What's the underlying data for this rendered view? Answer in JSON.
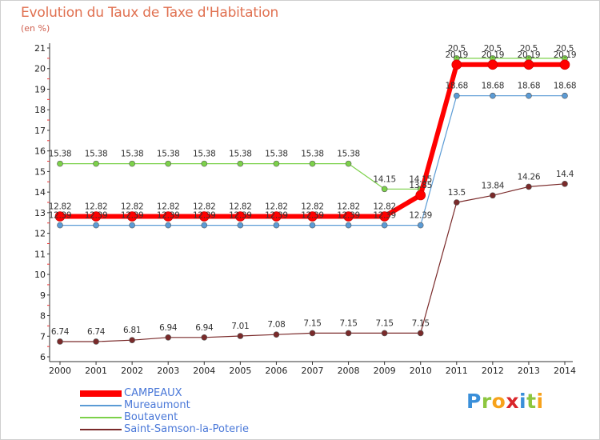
{
  "title": "Evolution du Taux de Taxe d'Habitation",
  "unit": "(en %)",
  "logo": {
    "text": "Proxiti"
  },
  "chart_data": {
    "type": "line",
    "title": "Evolution du Taux de Taxe d'Habitation",
    "ylabel": "(en %)",
    "xlabel": "",
    "x": [
      "2000",
      "2001",
      "2002",
      "2003",
      "2004",
      "2005",
      "2006",
      "2007",
      "2008",
      "2009",
      "2010",
      "2011",
      "2012",
      "2013",
      "2014"
    ],
    "ylim": [
      6,
      21
    ],
    "yticks": [
      "6",
      "7",
      "8",
      "9",
      "10",
      "11",
      "12",
      "13",
      "14",
      "15",
      "16",
      "17",
      "18",
      "19",
      "20",
      "21"
    ],
    "grid": false,
    "legend": "bottom-left",
    "series": [
      {
        "name": "CAMPEAUX",
        "color": "#ff0000",
        "values": [
          12.82,
          12.82,
          12.82,
          12.82,
          12.82,
          12.82,
          12.82,
          12.82,
          12.82,
          12.82,
          13.85,
          20.19,
          20.19,
          20.19,
          20.19
        ],
        "labels": [
          "12.82",
          "12.82",
          "12.82",
          "12.82",
          "12.82",
          "12.82",
          "12.82",
          "12.82",
          "12.82",
          "12.82",
          "13.85",
          "20.19",
          "20.19",
          "20.19",
          "20.19"
        ]
      },
      {
        "name": "Mureaumont",
        "color": "#5b9bd5",
        "values": [
          12.39,
          12.39,
          12.39,
          12.39,
          12.39,
          12.39,
          12.39,
          12.39,
          12.39,
          12.39,
          12.39,
          18.68,
          18.68,
          18.68,
          18.68
        ],
        "labels": [
          "12.39",
          "12.39",
          "12.39",
          "12.39",
          "12.39",
          "12.39",
          "12.39",
          "12.39",
          "12.39",
          "12.39",
          "12.39",
          "18.68",
          "18.68",
          "18.68",
          "18.68"
        ]
      },
      {
        "name": "Boutavent",
        "color": "#7cd14a",
        "values": [
          15.38,
          15.38,
          15.38,
          15.38,
          15.38,
          15.38,
          15.38,
          15.38,
          15.38,
          14.15,
          14.15,
          20.5,
          20.5,
          20.5,
          20.5
        ],
        "labels": [
          "15.38",
          "15.38",
          "15.38",
          "15.38",
          "15.38",
          "15.38",
          "15.38",
          "15.38",
          "15.38",
          "14.15",
          "14.15",
          "20.5",
          "20.5",
          "20.5",
          "20.5"
        ]
      },
      {
        "name": "Saint-Samson-la-Poterie",
        "color": "#7a2a2a",
        "values": [
          6.74,
          6.74,
          6.81,
          6.94,
          6.94,
          7.01,
          7.08,
          7.15,
          7.15,
          7.15,
          7.15,
          13.5,
          13.84,
          14.26,
          14.4
        ],
        "labels": [
          "6.74",
          "6.74",
          "6.81",
          "6.94",
          "6.94",
          "7.01",
          "7.08",
          "7.15",
          "7.15",
          "7.15",
          "7.15",
          "13.5",
          "13.84",
          "14.26",
          "14.4"
        ]
      }
    ]
  }
}
